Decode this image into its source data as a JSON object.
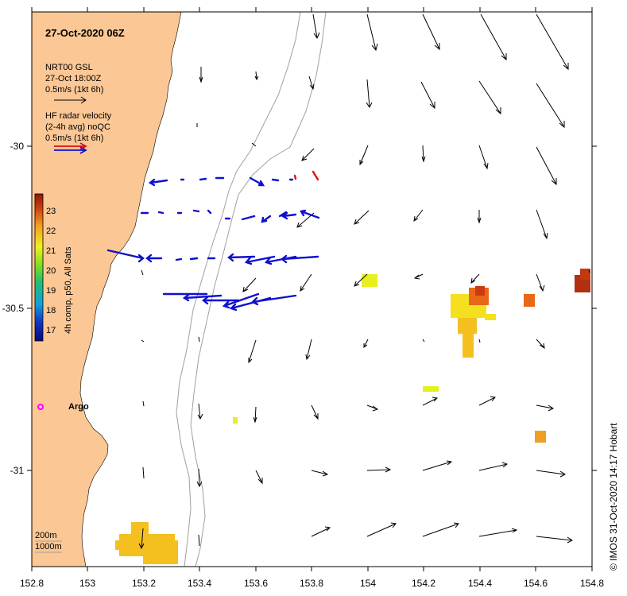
{
  "title": "27-Oct-2020 06Z",
  "legend": {
    "model_lines": [
      "NRT00 GSL",
      "27-Oct 18:00Z",
      "0.5m/s (1kt 6h)"
    ],
    "radar_lines": [
      "HF radar velocity",
      "(2-4h avg) noQC",
      "0.5m/s (1kt 6h)"
    ]
  },
  "colorbar": {
    "label": "4h comp, p50, All Sats",
    "ticks": [
      "23",
      "22",
      "21",
      "20",
      "19",
      "18",
      "17"
    ],
    "range": [
      16.5,
      23.5
    ]
  },
  "argo_label": "Argo",
  "depth_labels": [
    "200m",
    "1000m"
  ],
  "credit": "© IMOS 31-Oct-2020 14:17 Hobart",
  "x_ticks": [
    "152.8",
    "153",
    "153.2",
    "153.4",
    "153.6",
    "153.8",
    "154",
    "154.2",
    "154.4",
    "154.6",
    "154.8"
  ],
  "y_ticks": [
    "-30",
    "-30.5",
    "-31"
  ],
  "colors": {
    "land": "#fbc795",
    "model_arrow": "#000000",
    "radar_arrow": "#1010d0",
    "radar_arrow_alt": "#e01010",
    "isobath": "#a0a0a0",
    "argo": "#ff00ff"
  },
  "icons": [
    "argo-float-marker",
    "velocity-arrow"
  ]
}
